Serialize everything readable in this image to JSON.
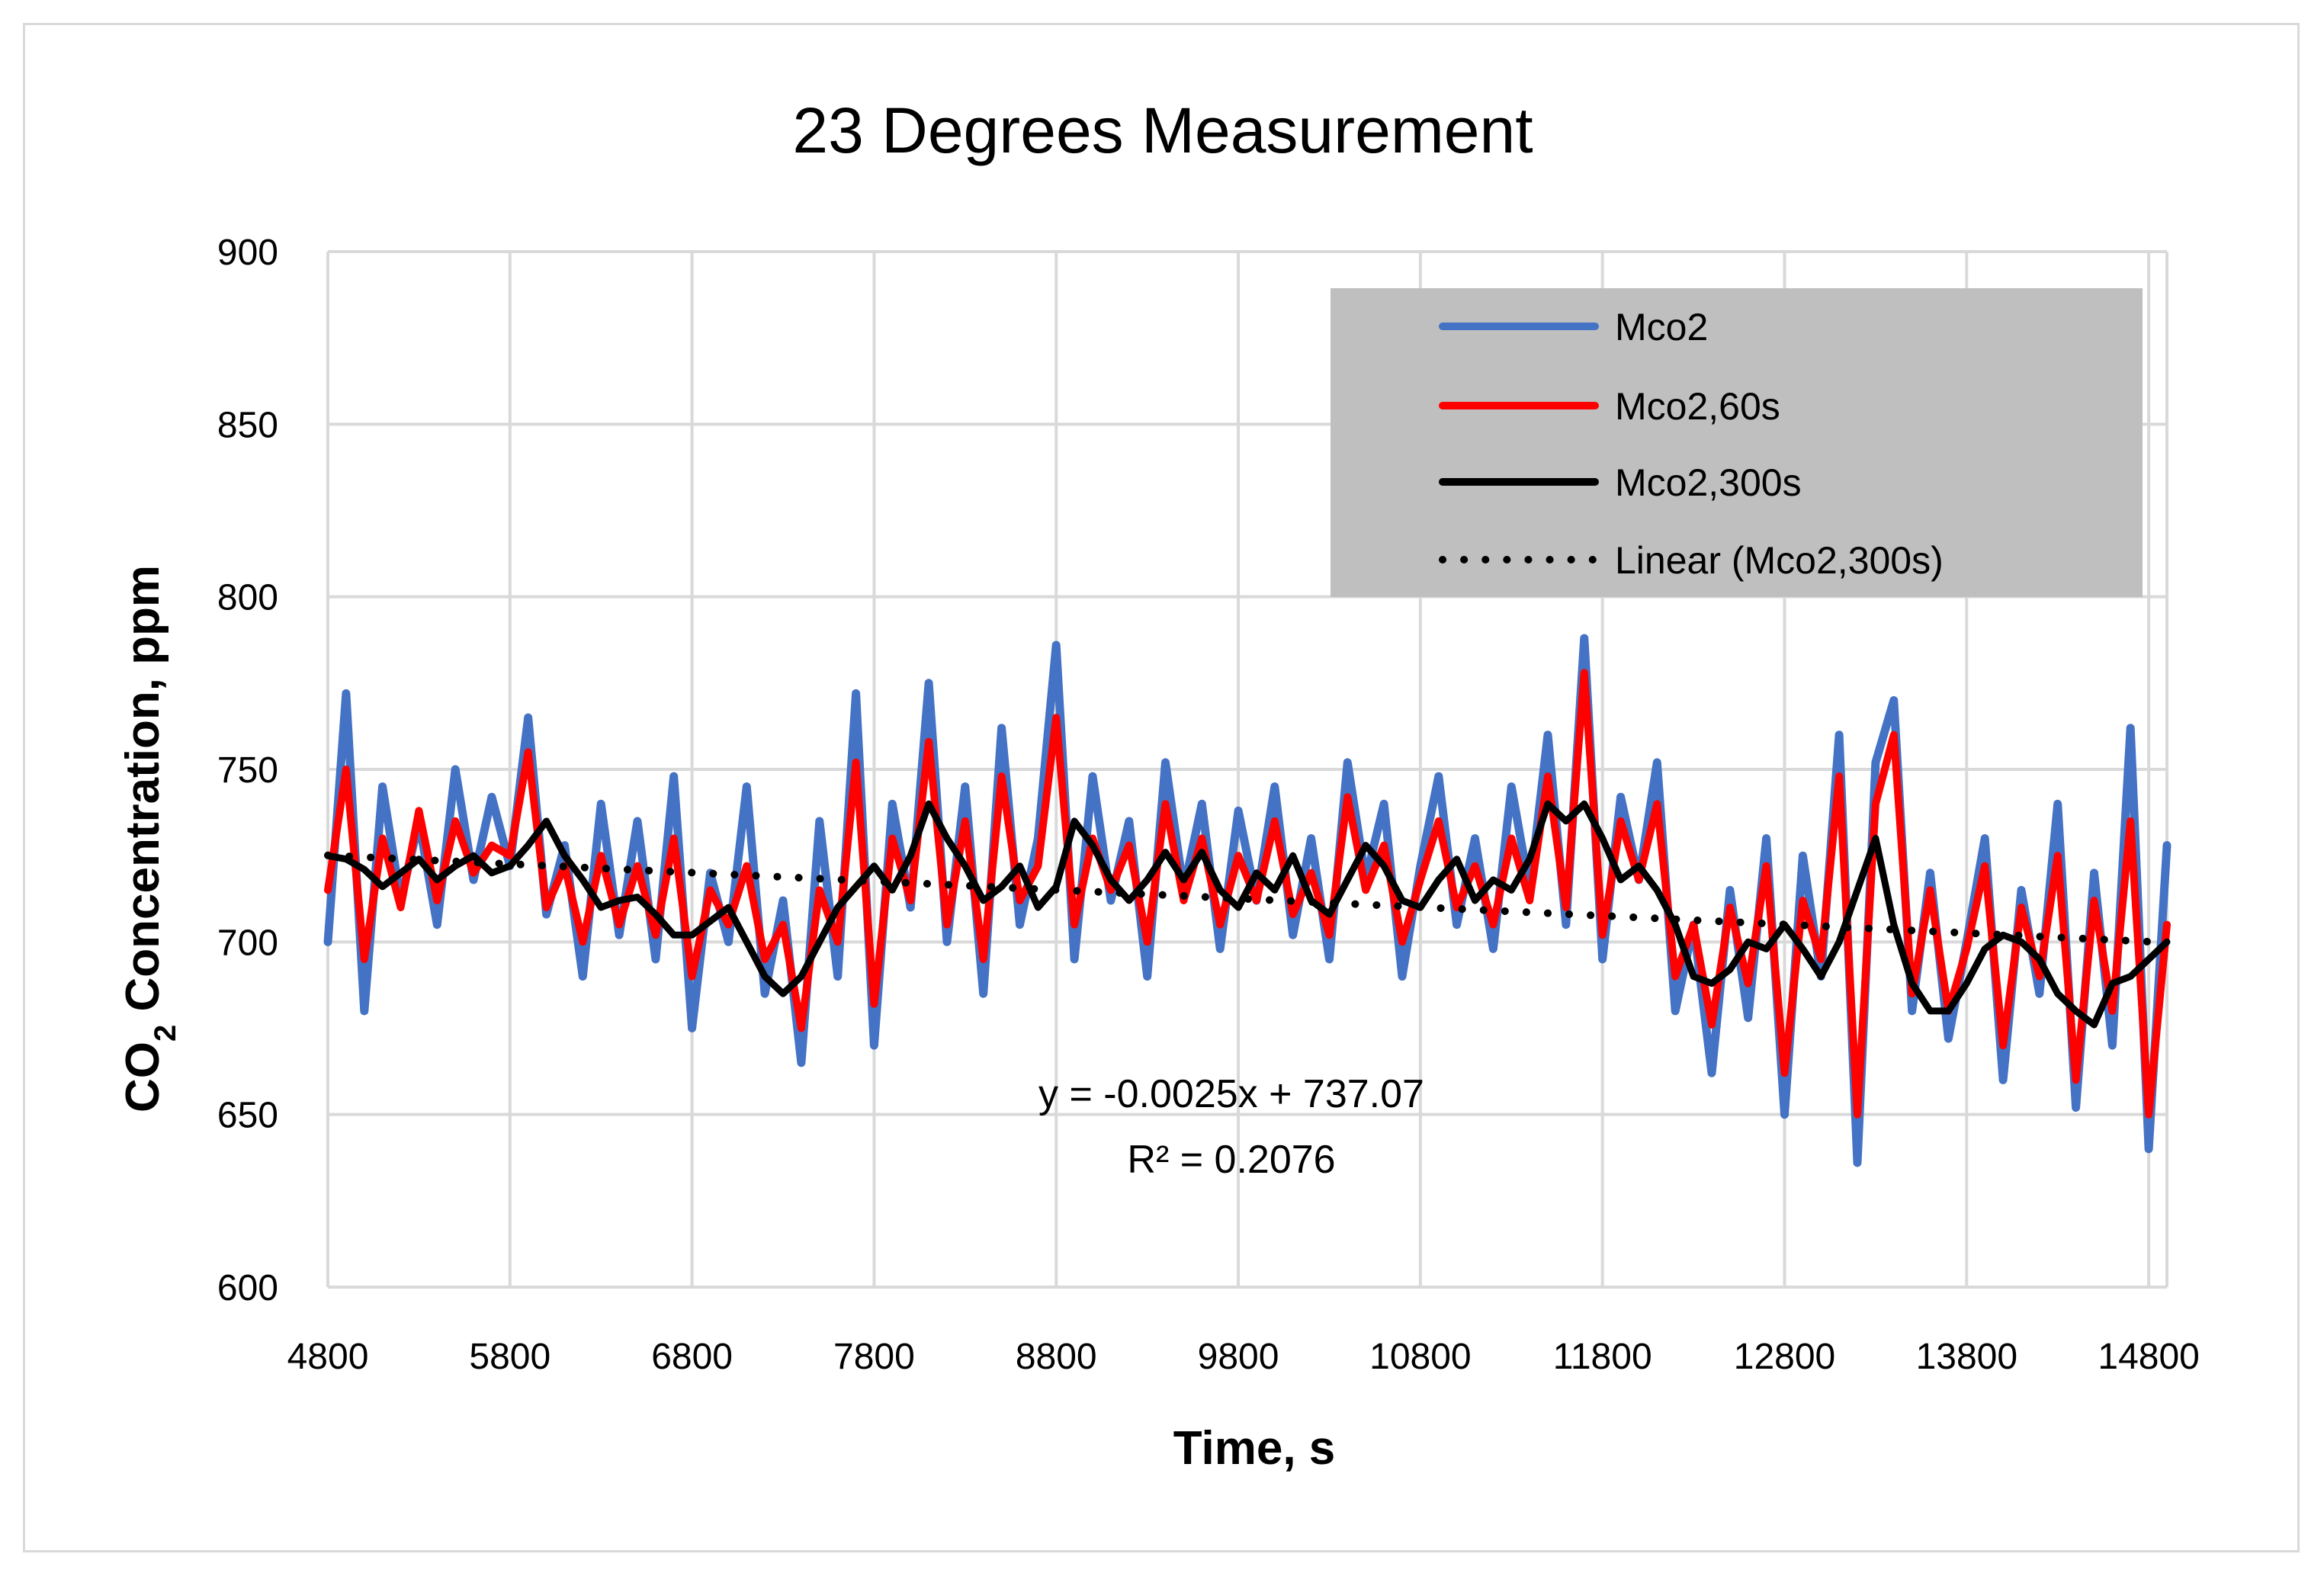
{
  "chart_data": {
    "type": "line",
    "title": "23 Degrees Measurement",
    "xlabel": "Time, s",
    "ylabel_main": "CO",
    "ylabel_sub": "2",
    "ylabel_rest": " Concentration, ppm",
    "xlim": [
      4800,
      14900
    ],
    "ylim": [
      600,
      900
    ],
    "x_ticks": [
      4800,
      5800,
      6800,
      7800,
      8800,
      9800,
      10800,
      11800,
      12800,
      13800,
      14800
    ],
    "y_ticks": [
      600,
      650,
      700,
      750,
      800,
      850,
      900
    ],
    "grid": true,
    "legend_position": "top-right",
    "series": [
      {
        "name": "Mco2",
        "color": "#4472c4",
        "style": "solid",
        "x": [
          4800,
          4900,
          5000,
          5100,
          5200,
          5300,
          5400,
          5500,
          5600,
          5700,
          5800,
          5900,
          6000,
          6100,
          6200,
          6300,
          6400,
          6500,
          6600,
          6700,
          6800,
          6900,
          7000,
          7100,
          7200,
          7300,
          7400,
          7500,
          7600,
          7700,
          7800,
          7900,
          8000,
          8100,
          8200,
          8300,
          8400,
          8500,
          8600,
          8700,
          8800,
          8900,
          9000,
          9100,
          9200,
          9300,
          9400,
          9500,
          9600,
          9700,
          9800,
          9900,
          10000,
          10100,
          10200,
          10300,
          10400,
          10500,
          10600,
          10700,
          10800,
          10900,
          11000,
          11100,
          11200,
          11300,
          11400,
          11500,
          11600,
          11700,
          11800,
          11900,
          12000,
          12100,
          12200,
          12300,
          12400,
          12500,
          12600,
          12700,
          12800,
          12900,
          13000,
          13100,
          13200,
          13300,
          13400,
          13500,
          13600,
          13700,
          13800,
          13900,
          14000,
          14100,
          14200,
          14300,
          14400,
          14500,
          14600,
          14700,
          14800,
          14900
        ],
        "values": [
          700,
          772,
          680,
          745,
          712,
          735,
          705,
          750,
          718,
          742,
          722,
          765,
          708,
          728,
          690,
          740,
          702,
          735,
          695,
          748,
          675,
          720,
          700,
          745,
          685,
          712,
          665,
          735,
          690,
          772,
          670,
          740,
          710,
          775,
          700,
          745,
          685,
          762,
          705,
          730,
          786,
          695,
          748,
          712,
          735,
          690,
          752,
          715,
          740,
          698,
          738,
          712,
          745,
          702,
          730,
          695,
          752,
          718,
          740,
          690,
          722,
          748,
          705,
          730,
          698,
          745,
          715,
          760,
          705,
          788,
          695,
          742,
          718,
          752,
          680,
          705,
          662,
          715,
          678,
          730,
          650,
          725,
          690,
          760,
          636,
          752,
          770,
          680,
          720,
          672,
          700,
          730,
          660,
          715,
          685,
          740,
          652,
          720,
          670,
          762,
          640,
          728
        ]
      },
      {
        "name": "Mco2,60s",
        "color": "#ff0000",
        "style": "solid",
        "x": [
          4800,
          4900,
          5000,
          5100,
          5200,
          5300,
          5400,
          5500,
          5600,
          5700,
          5800,
          5900,
          6000,
          6100,
          6200,
          6300,
          6400,
          6500,
          6600,
          6700,
          6800,
          6900,
          7000,
          7100,
          7200,
          7300,
          7400,
          7500,
          7600,
          7700,
          7800,
          7900,
          8000,
          8100,
          8200,
          8300,
          8400,
          8500,
          8600,
          8700,
          8800,
          8900,
          9000,
          9100,
          9200,
          9300,
          9400,
          9500,
          9600,
          9700,
          9800,
          9900,
          10000,
          10100,
          10200,
          10300,
          10400,
          10500,
          10600,
          10700,
          10800,
          10900,
          11000,
          11100,
          11200,
          11300,
          11400,
          11500,
          11600,
          11700,
          11800,
          11900,
          12000,
          12100,
          12200,
          12300,
          12400,
          12500,
          12600,
          12700,
          12800,
          12900,
          13000,
          13100,
          13200,
          13300,
          13400,
          13500,
          13600,
          13700,
          13800,
          13900,
          14000,
          14100,
          14200,
          14300,
          14400,
          14500,
          14600,
          14700,
          14800,
          14900
        ],
        "values": [
          715,
          750,
          695,
          730,
          710,
          738,
          712,
          735,
          720,
          728,
          725,
          755,
          710,
          722,
          700,
          725,
          705,
          722,
          702,
          730,
          690,
          715,
          705,
          722,
          695,
          705,
          675,
          715,
          700,
          752,
          682,
          730,
          712,
          758,
          705,
          735,
          695,
          748,
          712,
          722,
          765,
          705,
          730,
          715,
          728,
          700,
          740,
          712,
          730,
          705,
          725,
          712,
          735,
          708,
          720,
          702,
          742,
          715,
          728,
          700,
          718,
          735,
          710,
          722,
          705,
          730,
          712,
          748,
          710,
          778,
          702,
          735,
          718,
          740,
          690,
          705,
          676,
          710,
          688,
          722,
          662,
          712,
          695,
          748,
          650,
          740,
          760,
          685,
          715,
          680,
          698,
          722,
          670,
          710,
          690,
          725,
          660,
          712,
          680,
          735,
          650,
          705
        ]
      },
      {
        "name": "Mco2,300s",
        "color": "#000000",
        "style": "solid",
        "x": [
          4800,
          4900,
          5000,
          5100,
          5200,
          5300,
          5400,
          5500,
          5600,
          5700,
          5800,
          5900,
          6000,
          6100,
          6200,
          6300,
          6400,
          6500,
          6600,
          6700,
          6800,
          6900,
          7000,
          7100,
          7200,
          7300,
          7400,
          7500,
          7600,
          7700,
          7800,
          7900,
          8000,
          8100,
          8200,
          8300,
          8400,
          8500,
          8600,
          8700,
          8800,
          8900,
          9000,
          9100,
          9200,
          9300,
          9400,
          9500,
          9600,
          9700,
          9800,
          9900,
          10000,
          10100,
          10200,
          10300,
          10400,
          10500,
          10600,
          10700,
          10800,
          10900,
          11000,
          11100,
          11200,
          11300,
          11400,
          11500,
          11600,
          11700,
          11800,
          11900,
          12000,
          12100,
          12200,
          12300,
          12400,
          12500,
          12600,
          12700,
          12800,
          12900,
          13000,
          13100,
          13200,
          13300,
          13400,
          13500,
          13600,
          13700,
          13800,
          13900,
          14000,
          14100,
          14200,
          14300,
          14400,
          14500,
          14600,
          14700,
          14800,
          14900
        ],
        "values": [
          725,
          724,
          721,
          716,
          720,
          724,
          718,
          722,
          725,
          720,
          722,
          728,
          735,
          725,
          718,
          710,
          712,
          713,
          708,
          702,
          702,
          706,
          710,
          700,
          690,
          685,
          690,
          700,
          710,
          716,
          722,
          715,
          725,
          740,
          730,
          722,
          712,
          716,
          722,
          710,
          716,
          735,
          728,
          718,
          712,
          718,
          726,
          718,
          726,
          715,
          710,
          720,
          715,
          725,
          712,
          708,
          718,
          728,
          722,
          712,
          710,
          718,
          724,
          712,
          718,
          715,
          724,
          740,
          735,
          740,
          730,
          718,
          722,
          715,
          705,
          690,
          688,
          692,
          700,
          698,
          705,
          698,
          690,
          700,
          715,
          730,
          705,
          688,
          680,
          680,
          688,
          698,
          702,
          700,
          695,
          685,
          680,
          676,
          688,
          690,
          695,
          700
        ]
      },
      {
        "name": "Linear (Mco2,300s)",
        "color": "#000000",
        "style": "dotted",
        "x": [
          4800,
          14900
        ],
        "values": [
          725.07,
          699.82
        ]
      }
    ],
    "annotations": {
      "equation": "y = -0.0025x + 737.07",
      "r_squared": "R² = 0.2076"
    }
  }
}
